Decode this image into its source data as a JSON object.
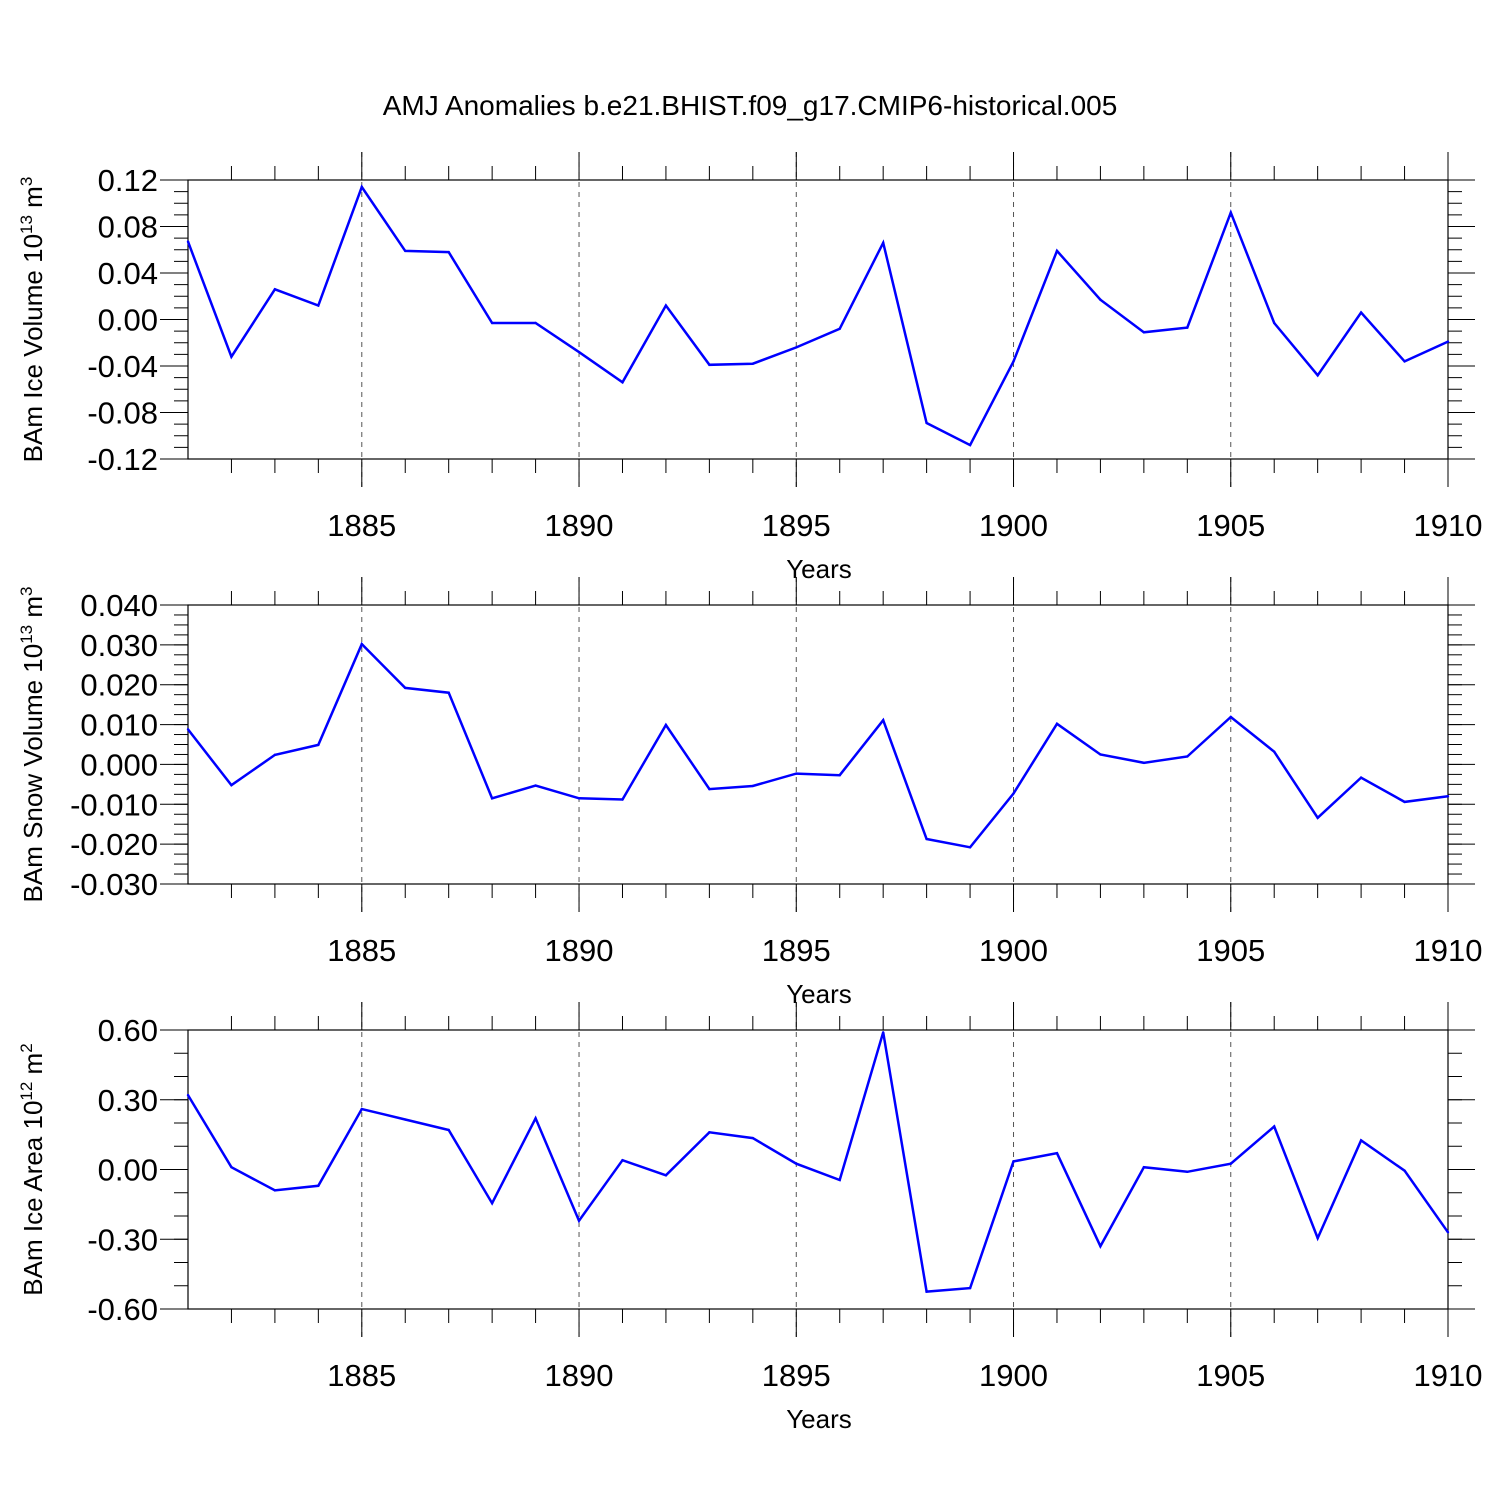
{
  "figure": {
    "title": "AMJ Anomalies b.e21.BHIST.f09_g17.CMIP6-historical.005"
  },
  "chart_data": [
    {
      "type": "line",
      "xlabel": "Years",
      "ylabel": {
        "text": "BAm Ice Volume 10",
        "exp": "13",
        "unit": "m",
        "unit_exp": "3"
      },
      "xlim": [
        1881,
        1910
      ],
      "ylim": [
        -0.12,
        0.12
      ],
      "y_major_ticks": [
        -0.12,
        -0.08,
        -0.04,
        0.0,
        0.04,
        0.08,
        0.12
      ],
      "y_tick_labels": [
        "-0.12",
        "-0.08",
        "-0.04",
        "0.00",
        "0.04",
        "0.08",
        "0.12"
      ],
      "y_minor_step": 0.01,
      "x_major_ticks": [
        1885,
        1890,
        1895,
        1900,
        1905,
        1910
      ],
      "x_tick_labels": [
        "1885",
        "1890",
        "1895",
        "1900",
        "1905",
        "1910"
      ],
      "grid": "dashed vertical at major x ticks",
      "line_color": "#0000ff",
      "series": [
        {
          "name": "BAm Ice Volume",
          "x": [
            1881,
            1882,
            1883,
            1884,
            1885,
            1886,
            1887,
            1888,
            1889,
            1890,
            1891,
            1892,
            1893,
            1894,
            1895,
            1896,
            1897,
            1898,
            1899,
            1900,
            1901,
            1902,
            1903,
            1904,
            1905,
            1906,
            1907,
            1908,
            1909,
            1910
          ],
          "values": [
            0.067,
            -0.032,
            0.026,
            0.012,
            0.114,
            0.059,
            0.058,
            -0.003,
            -0.003,
            -0.028,
            -0.054,
            0.012,
            -0.039,
            -0.038,
            -0.024,
            -0.008,
            0.066,
            -0.089,
            -0.108,
            -0.036,
            0.059,
            0.017,
            -0.011,
            -0.007,
            0.092,
            -0.003,
            -0.048,
            0.006,
            -0.036,
            -0.019
          ]
        }
      ]
    },
    {
      "type": "line",
      "xlabel": "Years",
      "ylabel": {
        "text": "BAm Snow Volume 10",
        "exp": "13",
        "unit": "m",
        "unit_exp": "3"
      },
      "xlim": [
        1881,
        1910
      ],
      "ylim": [
        -0.03,
        0.04
      ],
      "y_major_ticks": [
        -0.03,
        -0.02,
        -0.01,
        0.0,
        0.01,
        0.02,
        0.03,
        0.04
      ],
      "y_tick_labels": [
        "-0.030",
        "-0.020",
        "-0.010",
        "0.000",
        "0.010",
        "0.020",
        "0.030",
        "0.040"
      ],
      "y_minor_step": 0.0025,
      "x_major_ticks": [
        1885,
        1890,
        1895,
        1900,
        1905,
        1910
      ],
      "x_tick_labels": [
        "1885",
        "1890",
        "1895",
        "1900",
        "1905",
        "1910"
      ],
      "grid": "dashed vertical at major x ticks",
      "line_color": "#0000ff",
      "series": [
        {
          "name": "BAm Snow Volume",
          "x": [
            1881,
            1882,
            1883,
            1884,
            1885,
            1886,
            1887,
            1888,
            1889,
            1890,
            1891,
            1892,
            1893,
            1894,
            1895,
            1896,
            1897,
            1898,
            1899,
            1900,
            1901,
            1902,
            1903,
            1904,
            1905,
            1906,
            1907,
            1908,
            1909,
            1910
          ],
          "values": [
            0.0088,
            -0.0052,
            0.0024,
            0.0049,
            0.0302,
            0.0192,
            0.018,
            -0.0085,
            -0.0053,
            -0.0085,
            -0.0088,
            0.0099,
            -0.0062,
            -0.0054,
            -0.0023,
            -0.0027,
            0.0111,
            -0.0187,
            -0.0208,
            -0.0073,
            0.0102,
            0.0025,
            0.0004,
            0.002,
            0.0119,
            0.0032,
            -0.0134,
            -0.0033,
            -0.0094,
            -0.008
          ]
        }
      ]
    },
    {
      "type": "line",
      "xlabel": "Years",
      "ylabel": {
        "text": "BAm Ice Area 10",
        "exp": "12",
        "unit": "m",
        "unit_exp": "2"
      },
      "xlim": [
        1881,
        1910
      ],
      "ylim": [
        -0.6,
        0.6
      ],
      "y_major_ticks": [
        -0.6,
        -0.3,
        0.0,
        0.3,
        0.6
      ],
      "y_tick_labels": [
        "-0.60",
        "-0.30",
        "0.00",
        "0.30",
        "0.60"
      ],
      "y_minor_step": 0.1,
      "x_major_ticks": [
        1885,
        1890,
        1895,
        1900,
        1905,
        1910
      ],
      "x_tick_labels": [
        "1885",
        "1890",
        "1895",
        "1900",
        "1905",
        "1910"
      ],
      "grid": "dashed vertical at major x ticks",
      "line_color": "#0000ff",
      "series": [
        {
          "name": "BAm Ice Area",
          "x": [
            1881,
            1882,
            1883,
            1884,
            1885,
            1886,
            1887,
            1888,
            1889,
            1890,
            1891,
            1892,
            1893,
            1894,
            1895,
            1896,
            1897,
            1898,
            1899,
            1900,
            1901,
            1902,
            1903,
            1904,
            1905,
            1906,
            1907,
            1908,
            1909,
            1910
          ],
          "values": [
            0.32,
            0.01,
            -0.09,
            -0.07,
            0.26,
            0.215,
            0.17,
            -0.145,
            0.22,
            -0.22,
            0.04,
            -0.025,
            0.16,
            0.135,
            0.025,
            -0.045,
            0.59,
            -0.525,
            -0.51,
            0.035,
            0.07,
            -0.33,
            0.01,
            -0.01,
            0.025,
            0.185,
            -0.295,
            0.125,
            -0.005,
            -0.27
          ]
        }
      ]
    }
  ]
}
